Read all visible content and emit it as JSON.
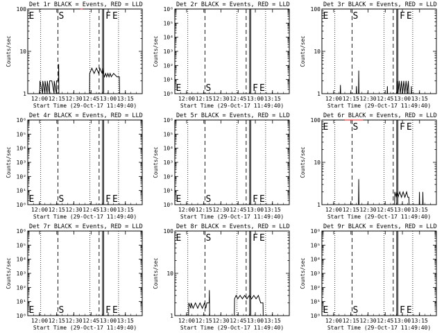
{
  "figure": {
    "colors": {
      "events": "#000000",
      "lld": "#ff0000",
      "background": "#ffffff"
    },
    "shared": {
      "xlabel": "Start Time (29-Oct-17 11:49:40)",
      "ylabel": "Counts/sec",
      "xticks": [
        "12:00",
        "12:15",
        "12:30",
        "12:45",
        "13:00",
        "13:15"
      ],
      "xrange_minutes": [
        0,
        100
      ],
      "dotted_line_times": [
        "12:01",
        "12:44",
        "13:09"
      ],
      "dashed_line_times": [
        "12:16",
        "12:52"
      ],
      "solid_line_times": [
        "12:55",
        "12:56"
      ],
      "markers": [
        "E",
        "S",
        "F",
        "E"
      ]
    }
  },
  "chart_data": [
    {
      "type": "line",
      "title": "Det 1r BLACK = Events, RED = LLD",
      "ylim": [
        1,
        100
      ],
      "yscale": "log",
      "yticks": [
        {
          "v": 1,
          "t": "1"
        },
        {
          "v": 10,
          "t": "10"
        },
        {
          "v": 100,
          "t": "100"
        }
      ],
      "marker_row": "top",
      "series": [
        {
          "color": "#000000",
          "points": [
            [
              10.5,
              1
            ],
            [
              10.6,
              2
            ],
            [
              13,
              1
            ],
            [
              13.1,
              2
            ],
            [
              15,
              1
            ],
            [
              15.1,
              2
            ],
            [
              17,
              1
            ],
            [
              17.1,
              2
            ],
            [
              19,
              1
            ],
            [
              19.1,
              2
            ],
            [
              21,
              2
            ],
            [
              23,
              1
            ],
            [
              23.1,
              2
            ],
            [
              25,
              1
            ],
            [
              25.1,
              2
            ],
            [
              26.8,
              2
            ],
            [
              27,
              5
            ],
            [
              27.2,
              1
            ],
            [
              54,
              1
            ],
            [
              54.1,
              3
            ],
            [
              56,
              4
            ],
            [
              58,
              3
            ],
            [
              60,
              4
            ],
            [
              62,
              3
            ],
            [
              63,
              4
            ],
            [
              65,
              3
            ],
            [
              65.2,
              4
            ],
            [
              66,
              3
            ],
            [
              67,
              2.5
            ],
            [
              68,
              3
            ],
            [
              69,
              2.5
            ],
            [
              70,
              3
            ],
            [
              71,
              2.5
            ],
            [
              72,
              3
            ],
            [
              73,
              2.5
            ],
            [
              75,
              3
            ],
            [
              78,
              2.5
            ],
            [
              80,
              2.5
            ],
            [
              80.2,
              1
            ]
          ]
        },
        {
          "color": "#ff0000",
          "points": [
            [
              46,
              100
            ],
            [
              48,
              100
            ]
          ]
        }
      ]
    },
    {
      "type": "line",
      "title": "Det 2r BLACK = Events, RED = LLD",
      "ylim": [
        1,
        1000000
      ],
      "yscale": "log",
      "yticks": [
        {
          "v": 1,
          "t": "10⁰"
        },
        {
          "v": 10,
          "t": "10¹"
        },
        {
          "v": 100,
          "t": "10²"
        },
        {
          "v": 1000,
          "t": "10³"
        },
        {
          "v": 10000,
          "t": "10⁴"
        },
        {
          "v": 100000,
          "t": "10⁵"
        },
        {
          "v": 1000000,
          "t": "10⁶"
        }
      ],
      "marker_row": "bottom",
      "series": []
    },
    {
      "type": "line",
      "title": "Det 3r BLACK = Events, RED = LLD",
      "ylim": [
        1,
        100
      ],
      "yscale": "log",
      "yticks": [
        {
          "v": 1,
          "t": "1"
        },
        {
          "v": 10,
          "t": "10"
        },
        {
          "v": 100,
          "t": "100"
        }
      ],
      "marker_row": "top",
      "series": [
        {
          "color": "#000000",
          "points": [
            [
              16,
              1
            ],
            [
              16.2,
              1.6
            ],
            [
              16.4,
              1
            ],
            [
              30,
              1
            ],
            [
              30.2,
              1.5
            ],
            [
              30.4,
              1
            ],
            [
              32,
              1
            ],
            [
              32.2,
              3.5
            ],
            [
              32.4,
              1
            ],
            [
              57,
              1
            ],
            [
              57.2,
              1.5
            ],
            [
              57.4,
              1
            ],
            [
              66,
              1
            ],
            [
              66.2,
              2
            ],
            [
              66.5,
              1
            ],
            [
              67.5,
              2
            ],
            [
              68.5,
              1
            ],
            [
              69.5,
              2
            ],
            [
              70.5,
              1
            ],
            [
              71.5,
              2
            ],
            [
              72.5,
              1
            ],
            [
              73.5,
              2
            ],
            [
              74.5,
              1
            ],
            [
              75.5,
              2
            ],
            [
              76,
              1
            ],
            [
              78,
              1
            ],
            [
              78.2,
              1.5
            ],
            [
              78.4,
              1
            ]
          ]
        }
      ]
    },
    {
      "type": "line",
      "title": "Det 4r BLACK = Events, RED = LLD",
      "ylim": [
        1,
        1000000
      ],
      "yscale": "log",
      "yticks": [
        {
          "v": 1,
          "t": "10⁰"
        },
        {
          "v": 10,
          "t": "10¹"
        },
        {
          "v": 100,
          "t": "10²"
        },
        {
          "v": 1000,
          "t": "10³"
        },
        {
          "v": 10000,
          "t": "10⁴"
        },
        {
          "v": 100000,
          "t": "10⁵"
        },
        {
          "v": 1000000,
          "t": "10⁶"
        }
      ],
      "marker_row": "bottom",
      "series": []
    },
    {
      "type": "line",
      "title": "Det 5r BLACK = Events, RED = LLD",
      "ylim": [
        1,
        1000000
      ],
      "yscale": "log",
      "yticks": [
        {
          "v": 1,
          "t": "10⁰"
        },
        {
          "v": 10,
          "t": "10¹"
        },
        {
          "v": 100,
          "t": "10²"
        },
        {
          "v": 1000,
          "t": "10³"
        },
        {
          "v": 10000,
          "t": "10⁴"
        },
        {
          "v": 100000,
          "t": "10⁵"
        },
        {
          "v": 1000000,
          "t": "10⁶"
        }
      ],
      "marker_row": "bottom",
      "series": []
    },
    {
      "type": "line",
      "title": "Det 6r BLACK = Events, RED = LLD",
      "ylim": [
        1,
        100
      ],
      "yscale": "log",
      "yticks": [
        {
          "v": 1,
          "t": "1"
        },
        {
          "v": 10,
          "t": "10"
        },
        {
          "v": 100,
          "t": "100"
        }
      ],
      "marker_row": "top",
      "series": [
        {
          "color": "#000000",
          "points": [
            [
              32,
              1
            ],
            [
              32.2,
              4
            ],
            [
              32.4,
              1
            ],
            [
              63.5,
              1
            ],
            [
              63.7,
              2
            ],
            [
              65,
              1.5
            ],
            [
              65.2,
              2
            ],
            [
              66.5,
              1.5
            ],
            [
              68,
              2
            ],
            [
              69.5,
              1.5
            ],
            [
              71,
              2
            ],
            [
              72.5,
              1.5
            ],
            [
              74,
              2
            ],
            [
              75,
              1.5
            ],
            [
              76,
              1.5
            ],
            [
              76.2,
              1
            ],
            [
              85,
              1
            ],
            [
              85.2,
              2
            ],
            [
              85.4,
              1
            ],
            [
              88,
              1
            ],
            [
              88.2,
              2
            ],
            [
              88.4,
              1
            ]
          ]
        },
        {
          "color": "#ff0000",
          "points": [
            [
              20,
              100
            ],
            [
              25,
              100
            ],
            [
              34,
              100
            ],
            [
              36,
              100
            ]
          ]
        }
      ]
    },
    {
      "type": "line",
      "title": "Det 7r BLACK = Events, RED = LLD",
      "ylim": [
        1,
        1000000
      ],
      "yscale": "log",
      "yticks": [
        {
          "v": 1,
          "t": "10⁰"
        },
        {
          "v": 10,
          "t": "10¹"
        },
        {
          "v": 100,
          "t": "10²"
        },
        {
          "v": 1000,
          "t": "10³"
        },
        {
          "v": 10000,
          "t": "10⁴"
        },
        {
          "v": 100000,
          "t": "10⁵"
        },
        {
          "v": 1000000,
          "t": "10⁶"
        }
      ],
      "marker_row": "bottom",
      "series": []
    },
    {
      "type": "line",
      "title": "Det 8r BLACK = Events, RED = LLD",
      "ylim": [
        1,
        100
      ],
      "yscale": "log",
      "yticks": [
        {
          "v": 1,
          "t": "1"
        },
        {
          "v": 10,
          "t": "10"
        },
        {
          "v": 100,
          "t": "100"
        }
      ],
      "marker_row": "top",
      "series": [
        {
          "color": "#000000",
          "points": [
            [
              12,
              1
            ],
            [
              12.2,
              2
            ],
            [
              14,
              1.5
            ],
            [
              14.2,
              2
            ],
            [
              16,
              1.5
            ],
            [
              18,
              2
            ],
            [
              20,
              1.5
            ],
            [
              22,
              2
            ],
            [
              24,
              1.5
            ],
            [
              26,
              2
            ],
            [
              27,
              1.5
            ],
            [
              28,
              2
            ],
            [
              30,
              2
            ],
            [
              30.2,
              4
            ],
            [
              30.4,
              1
            ],
            [
              52,
              1
            ],
            [
              52.2,
              2.5
            ],
            [
              53.5,
              3
            ],
            [
              55,
              2.5
            ],
            [
              57,
              3
            ],
            [
              59,
              2.5
            ],
            [
              61,
              3
            ],
            [
              63,
              2.5
            ],
            [
              65,
              3
            ],
            [
              67,
              2.5
            ],
            [
              69,
              3
            ],
            [
              71,
              2.5
            ],
            [
              73,
              3
            ],
            [
              75,
              2
            ],
            [
              77,
              2
            ],
            [
              77.2,
              1
            ]
          ]
        }
      ]
    },
    {
      "type": "line",
      "title": "Det 9r BLACK = Events, RED = LLD",
      "ylim": [
        1,
        1000000
      ],
      "yscale": "log",
      "yticks": [
        {
          "v": 1,
          "t": "10⁰"
        },
        {
          "v": 10,
          "t": "10¹"
        },
        {
          "v": 100,
          "t": "10²"
        },
        {
          "v": 1000,
          "t": "10³"
        },
        {
          "v": 10000,
          "t": "10⁴"
        },
        {
          "v": 100000,
          "t": "10⁵"
        },
        {
          "v": 1000000,
          "t": "10⁶"
        }
      ],
      "marker_row": "bottom",
      "series": []
    }
  ]
}
